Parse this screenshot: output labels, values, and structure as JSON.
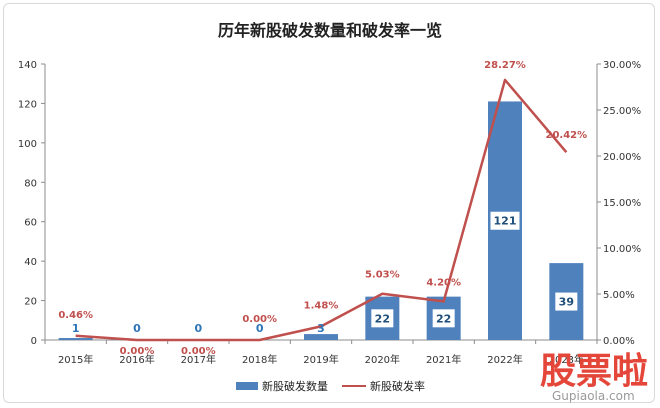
{
  "chart_data": {
    "type": "bar",
    "title": "历年新股破发数量和破发率一览",
    "categories": [
      "2015年",
      "2016年",
      "2017年",
      "2018年",
      "2019年",
      "2020年",
      "2021年",
      "2022年",
      "2023年"
    ],
    "series": [
      {
        "name": "新股破发数量",
        "type": "bar",
        "axis": "left",
        "color": "#4f81bd",
        "values": [
          1,
          0,
          0,
          0,
          3,
          22,
          22,
          121,
          39
        ],
        "labels": [
          "1",
          "0",
          "0",
          "0",
          "3",
          "22",
          "22",
          "121",
          "39"
        ]
      },
      {
        "name": "新股破发率",
        "type": "line",
        "axis": "right",
        "color": "#c0504d",
        "values": [
          0.46,
          0.0,
          0.0,
          0.0,
          1.48,
          5.03,
          4.2,
          28.27,
          20.42
        ],
        "labels": [
          "0.46%",
          "0.00%",
          "0.00%",
          "0.00%",
          "1.48%",
          "5.03%",
          "4.20%",
          "28.27%",
          "20.42%"
        ]
      }
    ],
    "y_left": {
      "ylim": [
        0,
        140
      ],
      "ticks": [
        "0",
        "20",
        "40",
        "60",
        "80",
        "100",
        "120",
        "140"
      ]
    },
    "y_right": {
      "ylim": [
        0,
        30
      ],
      "ticks": [
        "0.00%",
        "5.00%",
        "10.00%",
        "15.00%",
        "20.00%",
        "25.00%",
        "30.00%"
      ]
    },
    "grid": false,
    "legend": "bottom-center"
  },
  "watermark": {
    "main": "股票啦",
    "sub": "Gupiaola.com",
    "color": "#e4473a"
  }
}
